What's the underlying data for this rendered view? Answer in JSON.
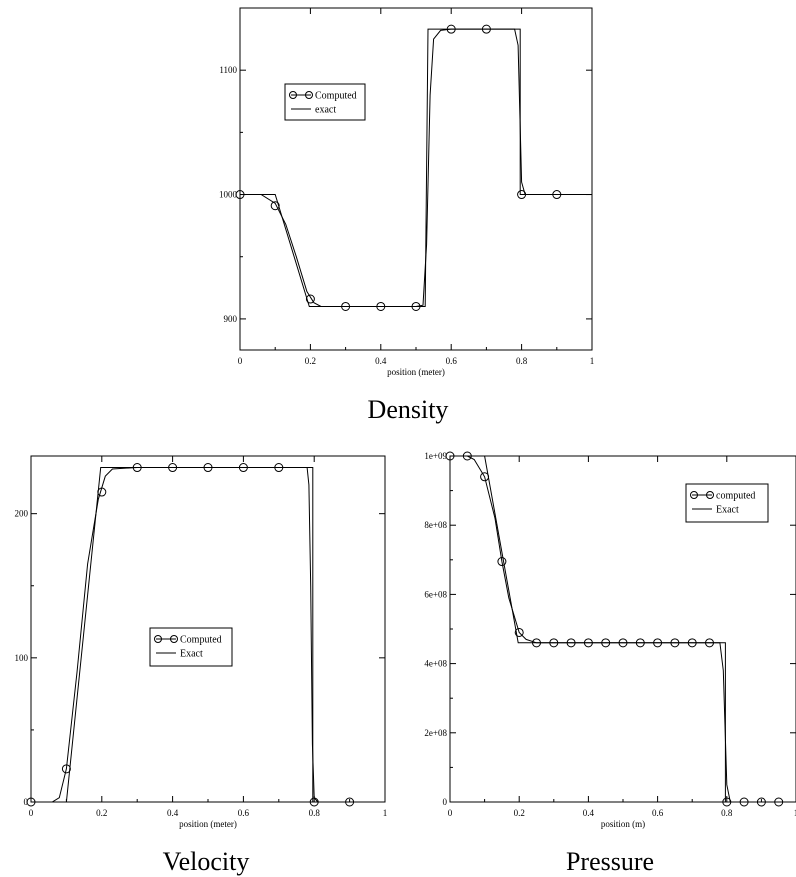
{
  "chart_data": [
    {
      "type": "line",
      "caption": "Density",
      "xlabel": "position (meter)",
      "ylabel": "",
      "xlim": [
        0,
        1
      ],
      "ylim": [
        875,
        1150
      ],
      "xticks": [
        0,
        0.2,
        0.4,
        0.6,
        0.8,
        1
      ],
      "xtick_labels": [
        "0",
        "0.2",
        "0.4",
        "0.6",
        "0.8",
        "1"
      ],
      "yticks": [
        900,
        1000,
        1100
      ],
      "ytick_labels": [
        "900",
        "1000",
        "1100"
      ],
      "legend_position": "upper-left-center",
      "series": [
        {
          "name": "Computed",
          "style": "line-with-circle-markers",
          "x": [
            0,
            0.1,
            0.2,
            0.3,
            0.4,
            0.5,
            0.6,
            0.7,
            0.8,
            0.9
          ],
          "y": [
            1000,
            991,
            916,
            910,
            910,
            910,
            1133,
            1133,
            1000,
            1000
          ],
          "curve_x": [
            0,
            0.06,
            0.1,
            0.13,
            0.16,
            0.19,
            0.21,
            0.23,
            0.3,
            0.4,
            0.5,
            0.52,
            0.53,
            0.54,
            0.55,
            0.57,
            0.6,
            0.7,
            0.78,
            0.79,
            0.8,
            0.81,
            0.9,
            1
          ],
          "curve_y": [
            1000,
            1000,
            993,
            976,
            950,
            922,
            913,
            910,
            910,
            910,
            910,
            911,
            960,
            1080,
            1125,
            1132,
            1133,
            1133,
            1133,
            1120,
            1010,
            1000,
            1000,
            1000
          ]
        },
        {
          "name": "exact",
          "style": "line",
          "x": [
            0,
            0.1,
            0.197,
            0.526,
            0.534,
            0.796,
            0.796,
            1
          ],
          "y": [
            1000,
            1000,
            910,
            910,
            1133,
            1133,
            1000,
            1000
          ]
        }
      ]
    },
    {
      "type": "line",
      "caption": "Velocity",
      "xlabel": "position (meter)",
      "ylabel": "",
      "xlim": [
        0,
        1
      ],
      "ylim": [
        0,
        240
      ],
      "xticks": [
        0,
        0.2,
        0.4,
        0.6,
        0.8,
        1
      ],
      "xtick_labels": [
        "0",
        "0.2",
        "0.4",
        "0.6",
        "0.8",
        "1"
      ],
      "yticks": [
        0,
        100,
        200
      ],
      "ytick_labels": [
        "0",
        "100",
        "200"
      ],
      "legend_position": "center",
      "series": [
        {
          "name": "Computed",
          "style": "line-with-circle-markers",
          "x": [
            0,
            0.1,
            0.2,
            0.3,
            0.4,
            0.5,
            0.6,
            0.7,
            0.8,
            0.9
          ],
          "y": [
            0,
            23,
            215,
            232,
            232,
            232,
            232,
            232,
            0,
            0
          ],
          "curve_x": [
            0,
            0.06,
            0.08,
            0.1,
            0.13,
            0.16,
            0.19,
            0.21,
            0.23,
            0.3,
            0.5,
            0.7,
            0.78,
            0.785,
            0.79,
            0.795,
            0.8,
            0.81,
            0.9,
            1
          ],
          "curve_y": [
            0,
            0,
            3,
            23,
            90,
            165,
            210,
            226,
            231,
            232,
            232,
            232,
            232,
            220,
            150,
            40,
            3,
            0,
            0,
            0
          ]
        },
        {
          "name": "Exact",
          "style": "line",
          "x": [
            0,
            0.1,
            0.197,
            0.796,
            0.796,
            1
          ],
          "y": [
            0,
            0,
            232,
            232,
            0,
            0
          ]
        }
      ]
    },
    {
      "type": "line",
      "caption": "Pressure",
      "xlabel": "position (m)",
      "ylabel": "",
      "xlim": [
        0,
        1
      ],
      "ylim": [
        0,
        1000000000
      ],
      "xticks": [
        0,
        0.2,
        0.4,
        0.6,
        0.8,
        1
      ],
      "xtick_labels": [
        "0",
        "0.2",
        "0.4",
        "0.6",
        "0.8",
        "1"
      ],
      "yticks": [
        0,
        200000000,
        400000000,
        600000000,
        800000000,
        1000000000
      ],
      "ytick_labels": [
        "0",
        "2e+08",
        "4e+08",
        "6e+08",
        "8e+08",
        "1e+09"
      ],
      "legend_position": "top-right",
      "series": [
        {
          "name": "computed",
          "style": "line-with-circle-markers",
          "x": [
            0,
            0.05,
            0.1,
            0.15,
            0.2,
            0.25,
            0.3,
            0.35,
            0.4,
            0.45,
            0.5,
            0.55,
            0.6,
            0.65,
            0.7,
            0.75,
            0.8,
            0.85,
            0.9,
            0.95
          ],
          "y": [
            1000000000,
            1000000000,
            940000000,
            695000000,
            490000000,
            460000000,
            460000000,
            460000000,
            460000000,
            460000000,
            460000000,
            460000000,
            460000000,
            460000000,
            460000000,
            460000000,
            0,
            0,
            0,
            0
          ],
          "curve_x": [
            0,
            0.05,
            0.07,
            0.1,
            0.13,
            0.15,
            0.17,
            0.2,
            0.22,
            0.25,
            0.3,
            0.5,
            0.7,
            0.78,
            0.79,
            0.8,
            0.81,
            0.85,
            0.95,
            1
          ],
          "curve_y": [
            1000000000,
            1000000000,
            990000000,
            940000000,
            820000000,
            695000000,
            590000000,
            490000000,
            470000000,
            460000000,
            460000000,
            460000000,
            460000000,
            460000000,
            380000000,
            50000000,
            0,
            0,
            0,
            0
          ],
          "marker_style": "open-circle"
        },
        {
          "name": "Exact",
          "style": "line",
          "x": [
            0,
            0.1,
            0.197,
            0.796,
            0.796,
            1
          ],
          "y": [
            1000000000,
            1000000000,
            460000000,
            460000000,
            0,
            0
          ]
        }
      ]
    }
  ]
}
